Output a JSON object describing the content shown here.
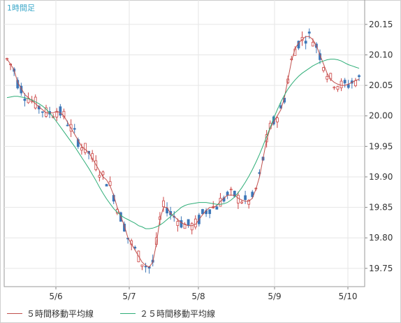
{
  "period_label": "1時間足",
  "legend": [
    {
      "name": "５時間移動平均線",
      "color": "#c0504d"
    },
    {
      "name": "２５時間移動平均線",
      "color": "#2fae78"
    }
  ],
  "colors": {
    "up": "#ffffff",
    "up_border": "#cc4444",
    "down": "#3d77b8",
    "grid": "#e6e6e6",
    "axis": "#8a8a8a"
  },
  "chart_data": {
    "type": "line",
    "title": "",
    "x_ticks": [
      "5/6",
      "5/7",
      "5/8",
      "5/9",
      "5/10"
    ],
    "y_ticks": [
      "20.15",
      "20.10",
      "20.05",
      "20.00",
      "19.95",
      "19.90",
      "19.85",
      "19.80",
      "19.75"
    ],
    "ylim": [
      19.72,
      20.19
    ],
    "grid": true,
    "legend_position": "bottom-left",
    "series": [
      {
        "name": "５時間移動平均線",
        "values": [
          20.093,
          20.085,
          20.075,
          20.055,
          20.045,
          20.035,
          20.03,
          20.025,
          20.02,
          20.015,
          20.01,
          20.005,
          20.005,
          20.005,
          20.008,
          20.005,
          20.0,
          19.99,
          19.98,
          19.97,
          19.96,
          19.95,
          19.945,
          19.94,
          19.93,
          19.92,
          19.91,
          19.9,
          19.895,
          19.885,
          19.87,
          19.85,
          19.835,
          19.82,
          19.8,
          19.79,
          19.78,
          19.77,
          19.76,
          19.755,
          19.752,
          19.76,
          19.79,
          19.83,
          19.85,
          19.85,
          19.84,
          19.835,
          19.83,
          19.825,
          19.822,
          19.82,
          19.82,
          19.822,
          19.83,
          19.838,
          19.845,
          19.85,
          19.85,
          19.853,
          19.86,
          19.865,
          19.87,
          19.87,
          19.87,
          19.865,
          19.862,
          19.86,
          19.86,
          19.865,
          19.88,
          19.9,
          19.93,
          19.96,
          19.98,
          19.99,
          20.0,
          20.01,
          20.03,
          20.06,
          20.09,
          20.11,
          20.12,
          20.125,
          20.13,
          20.13,
          20.125,
          20.115,
          20.1,
          20.085,
          20.07,
          20.06,
          20.055,
          20.052,
          20.05,
          20.05,
          20.052,
          20.055,
          20.058,
          20.06
        ]
      },
      {
        "name": "２５時間移動平均線",
        "values": [
          20.03,
          20.031,
          20.032,
          20.032,
          20.031,
          20.03,
          20.028,
          20.026,
          20.023,
          20.02,
          20.016,
          20.011,
          20.005,
          19.998,
          19.99,
          19.982,
          19.974,
          19.966,
          19.958,
          19.95,
          19.941,
          19.932,
          19.923,
          19.914,
          19.904,
          19.894,
          19.883,
          19.873,
          19.864,
          19.856,
          19.848,
          19.842,
          19.837,
          19.833,
          19.83,
          19.827,
          19.824,
          19.82,
          19.818,
          19.815,
          19.815,
          19.816,
          19.818,
          19.821,
          19.825,
          19.83,
          19.835,
          19.84,
          19.845,
          19.85,
          19.853,
          19.855,
          19.856,
          19.857,
          19.858,
          19.858,
          19.858,
          19.857,
          19.856,
          19.855,
          19.855,
          19.856,
          19.858,
          19.862,
          19.867,
          19.874,
          19.882,
          19.891,
          19.901,
          19.912,
          19.924,
          19.937,
          19.951,
          19.966,
          19.981,
          19.996,
          20.01,
          20.023,
          20.034,
          20.044,
          20.052,
          20.059,
          20.065,
          20.07,
          20.074,
          20.078,
          20.082,
          20.085,
          20.088,
          20.09,
          20.092,
          20.093,
          20.093,
          20.092,
          20.09,
          20.087,
          20.084,
          20.082,
          20.08,
          20.078
        ]
      }
    ]
  }
}
